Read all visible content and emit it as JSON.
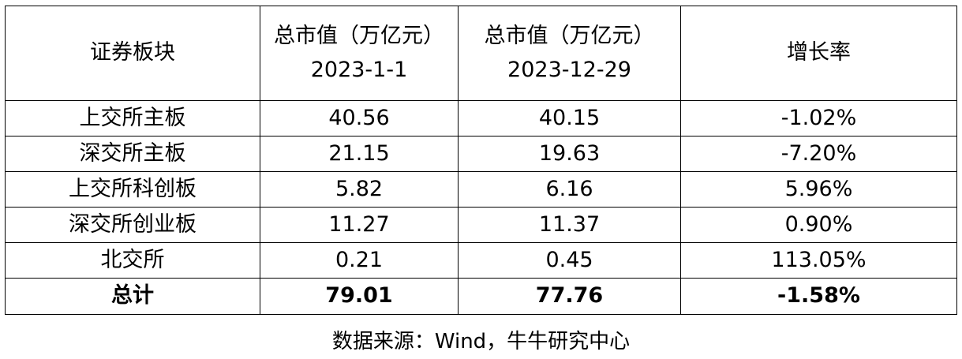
{
  "table": {
    "headers": {
      "sector": "证券板块",
      "start_cap_line1": "总市值（万亿元）",
      "start_cap_line2": "2023-1-1",
      "end_cap_line1": "总市值（万亿元）",
      "end_cap_line2": "2023-12-29",
      "growth": "增长率"
    },
    "rows": [
      {
        "sector": "上交所主板",
        "start": "40.56",
        "end": "40.15",
        "growth": "-1.02%"
      },
      {
        "sector": "深交所主板",
        "start": "21.15",
        "end": "19.63",
        "growth": "-7.20%"
      },
      {
        "sector": "上交所科创板",
        "start": "5.82",
        "end": "6.16",
        "growth": "5.96%"
      },
      {
        "sector": "深交所创业板",
        "start": "11.27",
        "end": "11.37",
        "growth": "0.90%"
      },
      {
        "sector": "北交所",
        "start": "0.21",
        "end": "0.45",
        "growth": "113.05%"
      }
    ],
    "total": {
      "sector": "总计",
      "start": "79.01",
      "end": "77.76",
      "growth": "-1.58%"
    }
  },
  "source": "数据来源：Wind，牛牛研究中心"
}
